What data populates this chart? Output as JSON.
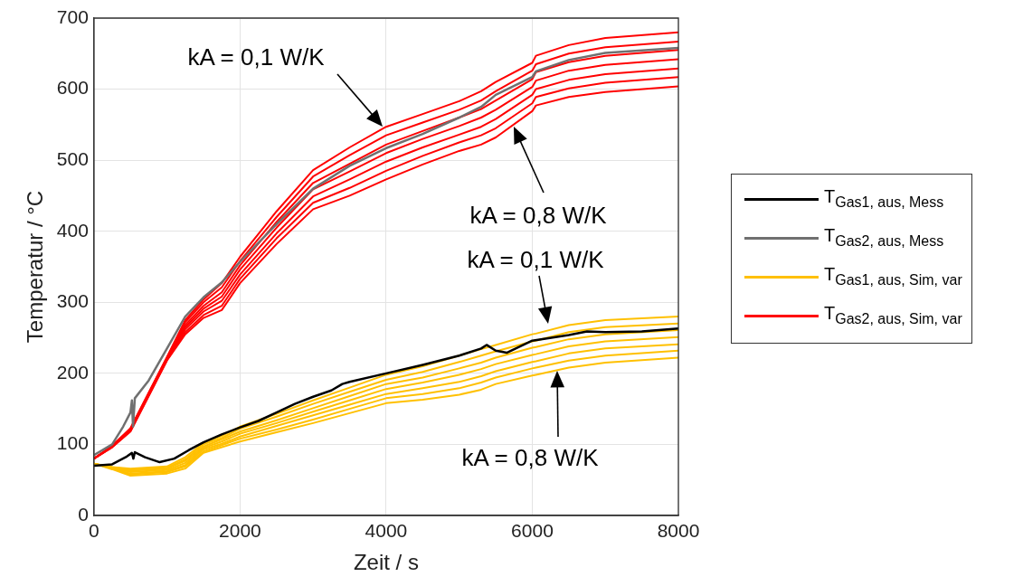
{
  "chart_data": {
    "type": "line",
    "xlabel": "Zeit / s",
    "ylabel": "Temperatur / °C",
    "xlim": [
      0,
      8000
    ],
    "xticks": [
      0,
      2000,
      4000,
      6000,
      8000
    ],
    "ylim": [
      0,
      700
    ],
    "yticks": [
      0,
      100,
      200,
      300,
      400,
      500,
      600,
      700
    ],
    "grid": true,
    "legend": "right",
    "marker": "none",
    "line_style": "solid",
    "x": [
      0,
      250,
      500,
      1000,
      1250,
      1500,
      1750,
      2000,
      2500,
      3000,
      3500,
      4000,
      4500,
      5000,
      5300,
      5500,
      6000,
      6050,
      6500,
      7000,
      8000
    ],
    "series": [
      {
        "name": "T$_{Gas1, aus, Mess}$",
        "color": "#000000",
        "x": [
          0,
          250,
          450,
          520,
          540,
          560,
          700,
          900,
          1100,
          1300,
          1500,
          1750,
          2000,
          2250,
          2500,
          2750,
          3000,
          3250,
          3400,
          3500,
          4000,
          4500,
          5000,
          5300,
          5375,
          5500,
          5650,
          6000,
          6500,
          6750,
          7000,
          7500,
          8000
        ],
        "values": [
          70,
          72,
          83,
          88,
          80,
          89,
          82,
          75,
          80,
          92,
          103,
          114,
          124,
          133,
          145,
          157,
          167,
          176,
          185,
          188,
          200,
          212,
          225,
          235,
          240,
          232,
          229,
          246,
          254,
          259,
          258,
          259,
          263
        ]
      },
      {
        "name": "T$_{Gas2, aus, Mess}$",
        "color": "#707070",
        "x": [
          0,
          250,
          400,
          500,
          520,
          535,
          560,
          750,
          1000,
          1250,
          1500,
          1750,
          2000,
          2500,
          3000,
          3500,
          4000,
          4500,
          5000,
          5300,
          5500,
          6000,
          6050,
          6500,
          7000,
          8000
        ],
        "values": [
          85,
          100,
          125,
          145,
          162,
          125,
          165,
          190,
          235,
          280,
          307,
          328,
          357,
          410,
          460,
          492,
          517,
          537,
          560,
          575,
          592,
          617,
          625,
          641,
          651,
          658
        ]
      },
      {
        "name": "T$_{Gas1, aus, Sim, var}$",
        "color": "#ffc000",
        "values": [
          73,
          68,
          66,
          69,
          82,
          102,
          112,
          125,
          143,
          162,
          180,
          198,
          210,
          225,
          234,
          240,
          255,
          256,
          268,
          275,
          280
        ]
      },
      {
        "color": "#ffc000",
        "values": [
          73,
          68,
          64,
          67,
          79,
          100,
          109,
          122,
          139,
          157,
          174,
          191,
          202,
          216,
          225,
          231,
          245,
          246,
          258,
          265,
          270
        ]
      },
      {
        "color": "#ffc000",
        "values": [
          73,
          67,
          63,
          66,
          77,
          97,
          107,
          118,
          134,
          151,
          168,
          185,
          194,
          207,
          215,
          222,
          236,
          237,
          248,
          255,
          261
        ]
      },
      {
        "color": "#ffc000",
        "values": [
          73,
          67,
          61,
          64,
          74,
          95,
          104,
          115,
          130,
          146,
          162,
          178,
          187,
          198,
          206,
          213,
          226,
          227,
          238,
          245,
          251
        ]
      },
      {
        "color": "#ffc000",
        "values": [
          73,
          66,
          59,
          62,
          71,
          93,
          101,
          111,
          126,
          141,
          156,
          171,
          179,
          188,
          196,
          203,
          216,
          217,
          228,
          235,
          241
        ]
      },
      {
        "color": "#ffc000",
        "values": [
          73,
          66,
          58,
          61,
          69,
          90,
          99,
          108,
          121,
          135,
          150,
          165,
          171,
          179,
          187,
          194,
          207,
          208,
          218,
          225,
          232
        ]
      },
      {
        "color": "#ffc000",
        "values": [
          73,
          65,
          56,
          59,
          66,
          88,
          96,
          104,
          117,
          130,
          144,
          158,
          163,
          170,
          177,
          185,
          197,
          198,
          208,
          215,
          222
        ]
      },
      {
        "name": "T$_{Gas2, aus, Sim, var}$",
        "color": "#ff0000",
        "values": [
          80,
          98,
          123,
          223,
          275,
          304,
          327,
          364,
          428,
          486,
          518,
          547,
          565,
          583,
          597,
          610,
          637,
          647,
          662,
          672,
          680
        ]
      },
      {
        "color": "#ff0000",
        "values": [
          80,
          98,
          122,
          222,
          272,
          300,
          321,
          358,
          420,
          477,
          507,
          535,
          553,
          571,
          584,
          597,
          626,
          635,
          650,
          659,
          667
        ]
      },
      {
        "color": "#ff0000",
        "values": [
          80,
          97,
          121,
          221,
          268,
          295,
          314,
          352,
          413,
          468,
          495,
          522,
          541,
          560,
          572,
          584,
          614,
          624,
          638,
          647,
          655
        ]
      },
      {
        "color": "#ff0000",
        "values": [
          80,
          97,
          121,
          221,
          265,
          291,
          308,
          346,
          405,
          459,
          484,
          510,
          530,
          548,
          560,
          571,
          603,
          612,
          626,
          634,
          642
        ]
      },
      {
        "color": "#ff0000",
        "values": [
          80,
          97,
          120,
          220,
          262,
          287,
          302,
          339,
          397,
          449,
          473,
          498,
          518,
          536,
          547,
          558,
          592,
          600,
          613,
          621,
          629
        ]
      },
      {
        "color": "#ff0000",
        "values": [
          80,
          96,
          119,
          219,
          258,
          282,
          295,
          333,
          390,
          440,
          461,
          485,
          506,
          525,
          535,
          545,
          580,
          589,
          601,
          609,
          617
        ]
      },
      {
        "color": "#ff0000",
        "values": [
          80,
          96,
          118,
          218,
          255,
          278,
          289,
          327,
          382,
          431,
          450,
          473,
          494,
          513,
          522,
          532,
          569,
          577,
          589,
          596,
          604
        ]
      }
    ],
    "annotations": [
      "kA = 0,1 W/K",
      "kA = 0,8 W/K",
      "kA = 0,1 W/K",
      "kA = 0,8 W/K"
    ]
  }
}
